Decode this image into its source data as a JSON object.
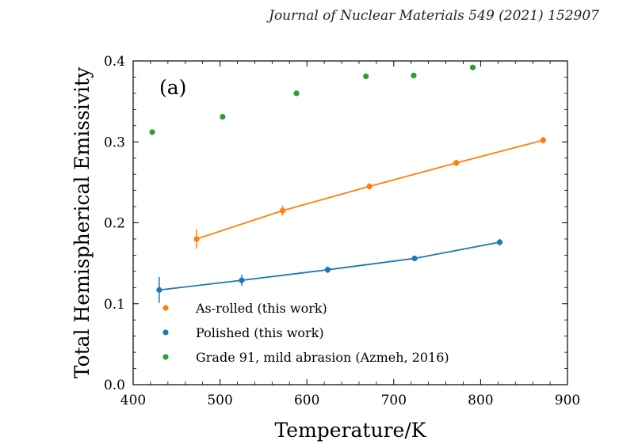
{
  "header": {
    "journal_citation": "Journal of Nuclear Materials 549 (2021) 152907"
  },
  "chart_data": {
    "type": "scatter",
    "panel_label": "(a)",
    "xlabel": "Temperature/K",
    "ylabel": "Total Hemispherical Emissivity",
    "xlim": [
      400,
      900
    ],
    "ylim": [
      0.0,
      0.4
    ],
    "x_ticks": [
      400,
      500,
      600,
      700,
      800,
      900
    ],
    "y_ticks": [
      0.0,
      0.1,
      0.2,
      0.3,
      0.4
    ],
    "x_tick_labels": [
      "400",
      "500",
      "600",
      "700",
      "800",
      "900"
    ],
    "y_tick_labels": [
      "0.0",
      "0.1",
      "0.2",
      "0.3",
      "0.4"
    ],
    "grid": false,
    "legend_position": "bottom-left",
    "series": [
      {
        "name": "As-rolled (this work)",
        "color": "#ff7f0e",
        "x": [
          473,
          572,
          672,
          772,
          872
        ],
        "y": [
          0.18,
          0.215,
          0.245,
          0.274,
          0.302
        ],
        "yerr": [
          0.012,
          0.006,
          0.004,
          0.004,
          0.004
        ],
        "fit_line": true
      },
      {
        "name": "Polished (this work)",
        "color": "#1f77b4",
        "x": [
          430,
          525,
          624,
          724,
          822
        ],
        "y": [
          0.117,
          0.129,
          0.142,
          0.156,
          0.176
        ],
        "yerr": [
          0.016,
          0.007,
          0.004,
          0.003,
          0.004
        ],
        "fit_line": true
      },
      {
        "name": "Grade 91, mild abrasion (Azmeh, 2016)",
        "color": "#2ca02c",
        "x": [
          422,
          503,
          588,
          668,
          723,
          791
        ],
        "y": [
          0.312,
          0.331,
          0.36,
          0.381,
          0.382,
          0.392
        ],
        "yerr": [],
        "fit_line": false
      }
    ]
  }
}
